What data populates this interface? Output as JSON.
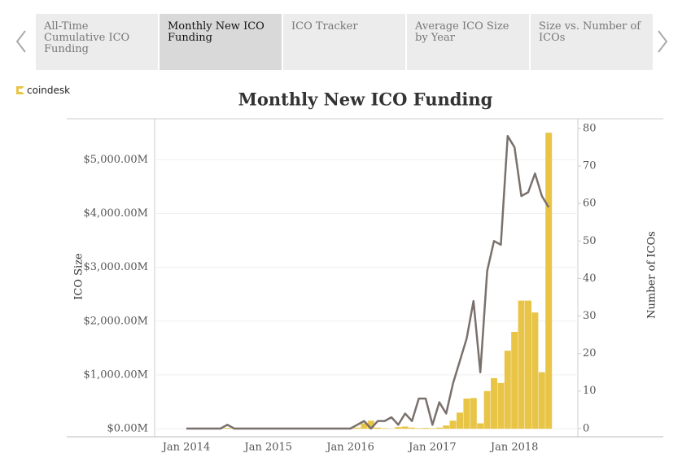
{
  "tabs": [
    "All-Time Cumulative ICO Funding",
    "Monthly New ICO Funding",
    "ICO Tracker",
    "Average ICO Size by Year",
    "Size vs. Number of ICOs"
  ],
  "active_tab": 1,
  "logo": "coindesk",
  "chart_data": {
    "type": "combo",
    "title": "Monthly New ICO Funding",
    "ylabel": "ICO Size",
    "y2label": "Number of ICOs",
    "categories": [
      "Jan 2014",
      null,
      null,
      null,
      null,
      null,
      null,
      null,
      null,
      null,
      null,
      null,
      "Jan 2015",
      null,
      null,
      null,
      null,
      null,
      null,
      null,
      null,
      null,
      null,
      null,
      "Jan 2016",
      null,
      null,
      null,
      null,
      null,
      null,
      null,
      null,
      null,
      null,
      null,
      "Jan 2017",
      null,
      null,
      null,
      null,
      null,
      null,
      null,
      null,
      null,
      null,
      null,
      "Jan 2018",
      null,
      null,
      null,
      null,
      null
    ],
    "series": [
      {
        "type": "bar",
        "color": "#e8c547",
        "axis": "y",
        "values": [
          0,
          0,
          0,
          0,
          0,
          0,
          15,
          0,
          0,
          0,
          0,
          0,
          0,
          0,
          0,
          0,
          0,
          0,
          0,
          0,
          0,
          0,
          0,
          0,
          10,
          20,
          100,
          150,
          20,
          10,
          5,
          30,
          40,
          20,
          10,
          15,
          10,
          20,
          60,
          150,
          300,
          560,
          570,
          100,
          700,
          940,
          850,
          1450,
          1800,
          2380,
          2380,
          2160,
          1050,
          5500
        ]
      },
      {
        "type": "line",
        "color": "#7a716d",
        "axis": "y2",
        "values": [
          0,
          0,
          0,
          0,
          0,
          0,
          1,
          0,
          0,
          0,
          0,
          0,
          0,
          0,
          0,
          0,
          0,
          0,
          0,
          0,
          0,
          0,
          0,
          0,
          0,
          1,
          2,
          0,
          2,
          2,
          3,
          1,
          4,
          2,
          8,
          8,
          1,
          7,
          4,
          12,
          18,
          24,
          34,
          15,
          42,
          50,
          49,
          78,
          75,
          62,
          63,
          68,
          62,
          59
        ]
      }
    ],
    "ylim": [
      -150,
      5760
    ],
    "yticks": [
      {
        "value": 0,
        "label": "$0.00M"
      },
      {
        "value": 1000,
        "label": "$1,000.00M"
      },
      {
        "value": 2000,
        "label": "$2,000.00M"
      },
      {
        "value": 3000,
        "label": "$3,000.00M"
      },
      {
        "value": 4000,
        "label": "$4,000.00M"
      },
      {
        "value": 5000,
        "label": "$5,000.00M"
      }
    ],
    "y2lim": [
      -2.2,
      82.6
    ],
    "y2ticks": [
      0,
      10,
      20,
      30,
      40,
      50,
      60,
      70,
      80
    ],
    "grid": true
  }
}
